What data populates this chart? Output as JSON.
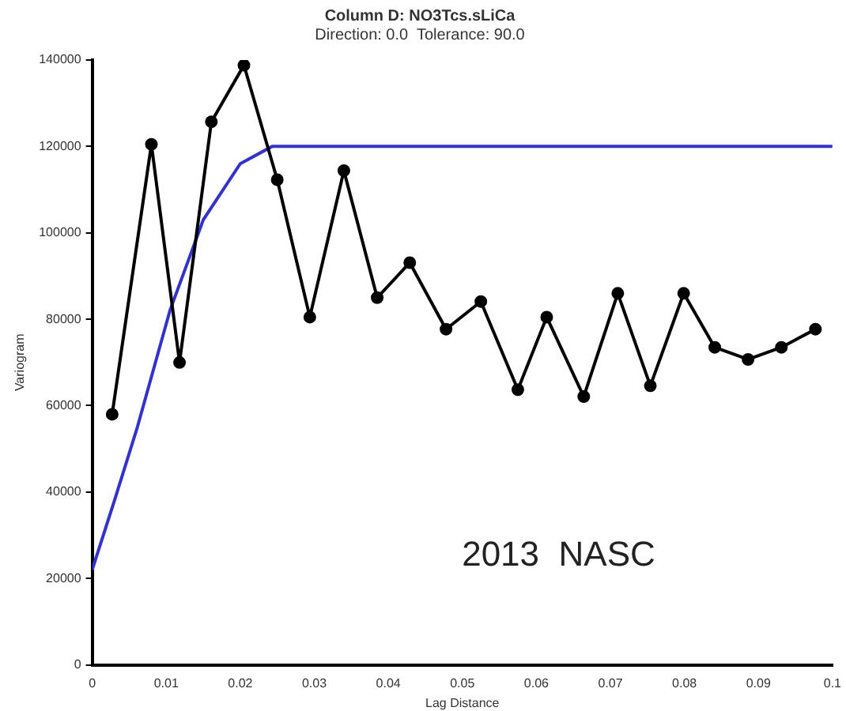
{
  "chart_data": {
    "type": "line",
    "title": "Column D: NO3Tcs.sLiCa",
    "subtitle": "Direction: 0.0  Tolerance: 90.0",
    "xlabel": "Lag Distance",
    "ylabel": "Variogram",
    "annotations": [
      "2013  NASC"
    ],
    "xlim": [
      0,
      0.1
    ],
    "xticks": [
      0,
      0.01,
      0.02,
      0.03,
      0.04,
      0.05,
      0.06,
      0.07,
      0.08,
      0.09,
      0.1
    ],
    "ylim": [
      0,
      140000
    ],
    "yticks": [
      0,
      20000,
      40000,
      60000,
      80000,
      100000,
      120000,
      140000
    ],
    "grid": false,
    "legend": false,
    "marker": "circle",
    "line_style": "solid",
    "series": [
      {
        "color": "#000000",
        "x": [
          0.0027,
          0.008,
          0.0118,
          0.0161,
          0.0205,
          0.025,
          0.0294,
          0.034,
          0.0385,
          0.0429,
          0.0478,
          0.0525,
          0.0575,
          0.0614,
          0.0664,
          0.071,
          0.0754,
          0.0799,
          0.0841,
          0.0886,
          0.0931,
          0.0977
        ],
        "values": [
          58000,
          120500,
          70000,
          125700,
          138800,
          112300,
          80500,
          114400,
          85000,
          93100,
          77700,
          84100,
          63700,
          80500,
          62100,
          86000,
          64600,
          86000,
          73500,
          70700,
          73500,
          77700
        ]
      },
      {
        "color": "#3333cc",
        "marker": "none",
        "x": [
          0,
          0.003,
          0.0061,
          0.0105,
          0.015,
          0.02,
          0.0243,
          0.1
        ],
        "values": [
          22000,
          38000,
          55000,
          82000,
          103000,
          116000,
          120000,
          120000
        ]
      }
    ]
  }
}
